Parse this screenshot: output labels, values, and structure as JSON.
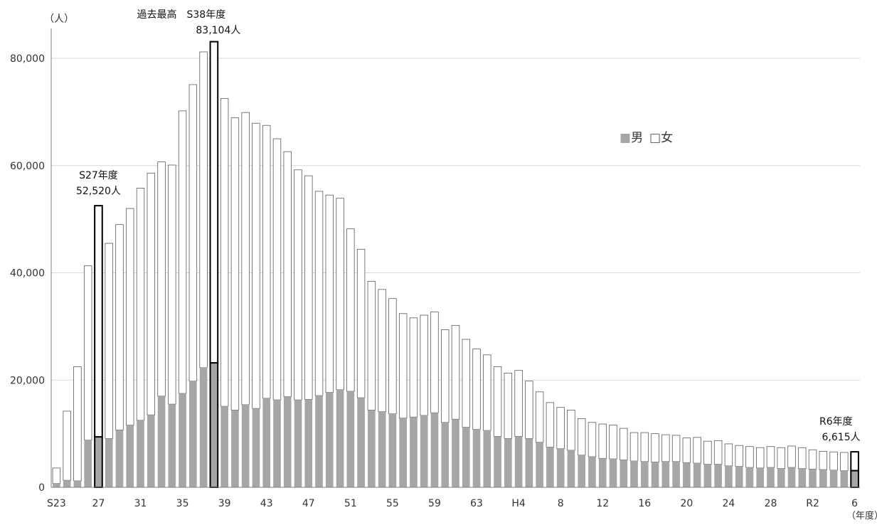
{
  "chart_data": {
    "type": "bar",
    "stacked": true,
    "y_unit": "（人）",
    "x_unit": "（年度）",
    "ylim": [
      0,
      80000
    ],
    "ytick_labels": [
      "0",
      "20,000",
      "40,000",
      "60,000",
      "80,000"
    ],
    "yticks": [
      0,
      20000,
      40000,
      60000,
      80000
    ],
    "grid": true,
    "legend_position": "right, upper middle",
    "legend_items": [
      {
        "marker": "■",
        "label": "男",
        "color": "#a6a6a6"
      },
      {
        "marker": "□",
        "label": "女",
        "color": "#ffffff"
      }
    ],
    "categories": [
      "S23",
      "24",
      "25",
      "26",
      "27",
      "28",
      "29",
      "30",
      "31",
      "32",
      "33",
      "34",
      "35",
      "36",
      "37",
      "38",
      "39",
      "40",
      "41",
      "42",
      "43",
      "44",
      "45",
      "46",
      "47",
      "48",
      "49",
      "50",
      "51",
      "52",
      "53",
      "54",
      "55",
      "56",
      "57",
      "58",
      "59",
      "60",
      "61",
      "62",
      "63",
      "H1",
      "2",
      "3",
      "H4",
      "5",
      "6",
      "7",
      "8",
      "9",
      "10",
      "11",
      "12",
      "13",
      "14",
      "15",
      "16",
      "17",
      "18",
      "19",
      "20",
      "21",
      "22",
      "23",
      "24",
      "25",
      "26",
      "27",
      "28",
      "29",
      "30",
      "R1",
      "R2",
      "3",
      "4",
      "5",
      "6"
    ],
    "xtick_labels": [
      "S23",
      "27",
      "31",
      "35",
      "39",
      "43",
      "47",
      "51",
      "55",
      "59",
      "63",
      "H4",
      "8",
      "12",
      "16",
      "20",
      "24",
      "28",
      "R2",
      "6"
    ],
    "xtick_indices": [
      0,
      4,
      8,
      12,
      16,
      20,
      24,
      28,
      32,
      36,
      40,
      44,
      48,
      52,
      56,
      60,
      64,
      68,
      72,
      76
    ],
    "series": [
      {
        "name": "男",
        "color": "#a6a6a6",
        "values": [
          700,
          1300,
          1200,
          8800,
          9400,
          9100,
          10700,
          11600,
          12500,
          13500,
          17000,
          15500,
          17500,
          19800,
          22300,
          23200,
          15100,
          14400,
          15400,
          14700,
          16600,
          16300,
          16900,
          16300,
          16400,
          17100,
          17700,
          18200,
          17900,
          16700,
          14400,
          14100,
          13700,
          12900,
          13100,
          13400,
          13900,
          12100,
          12700,
          11200,
          10800,
          10600,
          9500,
          9100,
          9500,
          9100,
          8400,
          7500,
          7200,
          6900,
          6000,
          5700,
          5400,
          5300,
          5100,
          4900,
          4800,
          4700,
          4800,
          4800,
          4600,
          4500,
          4300,
          4300,
          4000,
          3900,
          3700,
          3600,
          3700,
          3500,
          3700,
          3500,
          3400,
          3300,
          3200,
          3100,
          3100
        ]
      },
      {
        "name": "女",
        "color": "#ffffff",
        "values": [
          2900,
          12900,
          21300,
          32500,
          43120,
          36400,
          38300,
          40400,
          43300,
          45100,
          43700,
          44600,
          52700,
          55300,
          58900,
          59904,
          57400,
          54500,
          54500,
          53200,
          50900,
          48700,
          45700,
          42900,
          41700,
          38100,
          36800,
          35700,
          30300,
          27700,
          24000,
          22800,
          21500,
          19500,
          18500,
          18700,
          18800,
          17300,
          17500,
          16400,
          15000,
          14100,
          13000,
          12200,
          12300,
          10700,
          9400,
          8300,
          7700,
          7500,
          6800,
          6400,
          6400,
          6300,
          5900,
          5300,
          5400,
          5300,
          5000,
          4900,
          4600,
          4800,
          4300,
          4400,
          4100,
          3900,
          3900,
          3800,
          3900,
          3900,
          4000,
          3900,
          3600,
          3400,
          3400,
          3400,
          3515
        ]
      }
    ],
    "highlighted_indices": [
      4,
      15,
      76
    ],
    "annotations": [
      {
        "id": "s27",
        "index": 4,
        "lines": [
          "S27年度",
          "52,520人"
        ]
      },
      {
        "id": "s38",
        "index": 15,
        "lines": [
          "過去最高　S38年度",
          "83,104人"
        ]
      },
      {
        "id": "r6",
        "index": 76,
        "lines": [
          "R6年度",
          "6,615人"
        ]
      }
    ]
  }
}
